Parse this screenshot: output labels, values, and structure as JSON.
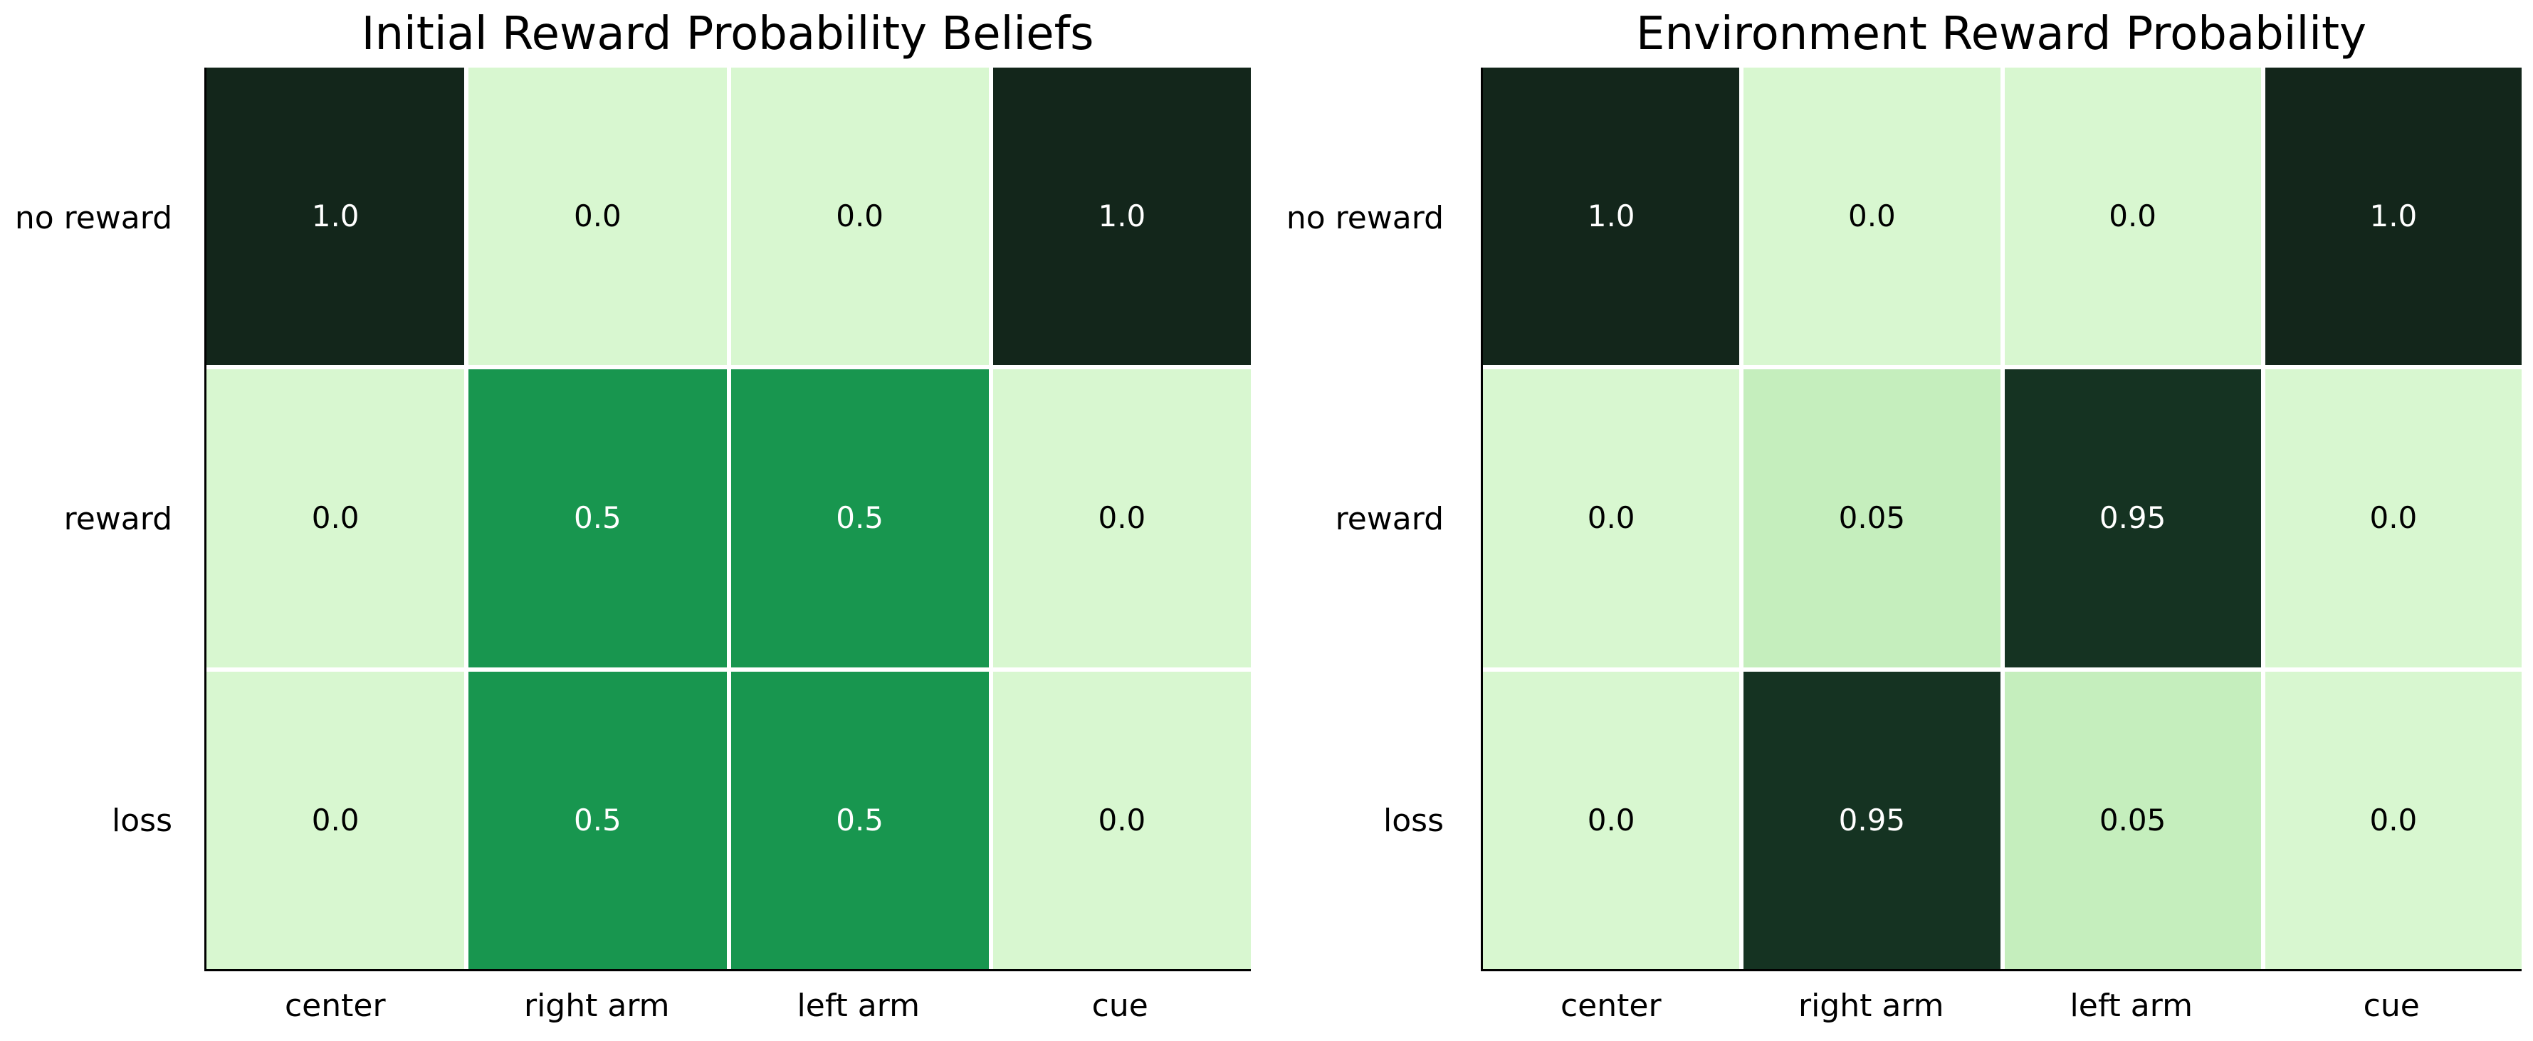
{
  "figure": {
    "background": "#ffffff",
    "spine_color": "#000000",
    "gridline_color": "#ffffff"
  },
  "style": {
    "cells": {
      "1.0": {
        "bg": "#13261b",
        "fg": "#ffffff"
      },
      "0.95": {
        "bg": "#153322",
        "fg": "#ffffff"
      },
      "0.5": {
        "bg": "#18964f",
        "fg": "#ffffff"
      },
      "0.05": {
        "bg": "#c5eebd",
        "fg": "#000000"
      },
      "0.0": {
        "bg": "#d8f7d0",
        "fg": "#000000"
      }
    }
  },
  "chart_data": [
    {
      "type": "heatmap",
      "title": "Initial Reward Probability Beliefs",
      "x_categories": [
        "center",
        "right arm",
        "left arm",
        "cue"
      ],
      "y_categories": [
        "no reward",
        "reward",
        "loss"
      ],
      "values": [
        [
          1.0,
          0.0,
          0.0,
          1.0
        ],
        [
          0.0,
          0.5,
          0.5,
          0.0
        ],
        [
          0.0,
          0.5,
          0.5,
          0.0
        ]
      ],
      "annotations": [
        [
          "1.0",
          "0.0",
          "0.0",
          "1.0"
        ],
        [
          "0.0",
          "0.5",
          "0.5",
          "0.0"
        ],
        [
          "0.0",
          "0.5",
          "0.5",
          "0.0"
        ]
      ],
      "colormap": "greens-dark-high",
      "value_range": [
        0.0,
        1.0
      ],
      "colorbar": false,
      "legend": false,
      "grid": false
    },
    {
      "type": "heatmap",
      "title": "Environment Reward Probability",
      "x_categories": [
        "center",
        "right arm",
        "left arm",
        "cue"
      ],
      "y_categories": [
        "no reward",
        "reward",
        "loss"
      ],
      "values": [
        [
          1.0,
          0.0,
          0.0,
          1.0
        ],
        [
          0.0,
          0.05,
          0.95,
          0.0
        ],
        [
          0.0,
          0.95,
          0.05,
          0.0
        ]
      ],
      "annotations": [
        [
          "1.0",
          "0.0",
          "0.0",
          "1.0"
        ],
        [
          "0.0",
          "0.05",
          "0.95",
          "0.0"
        ],
        [
          "0.0",
          "0.95",
          "0.05",
          "0.0"
        ]
      ],
      "colormap": "greens-dark-high",
      "value_range": [
        0.0,
        1.0
      ],
      "colorbar": false,
      "legend": false,
      "grid": false
    }
  ]
}
